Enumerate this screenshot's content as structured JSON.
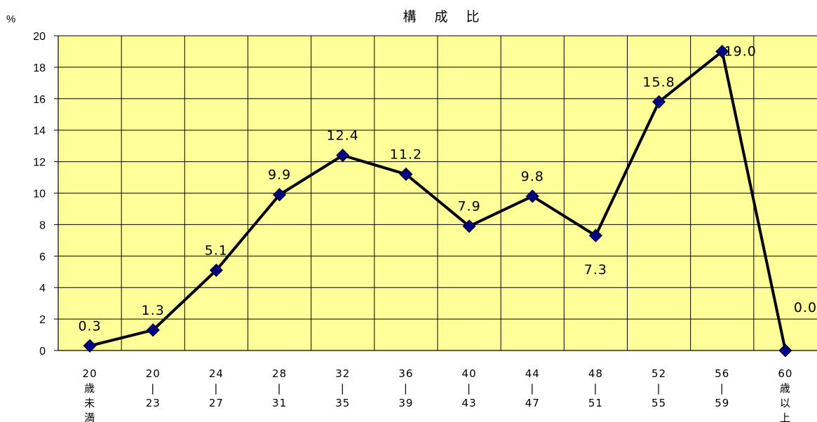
{
  "chart_data": {
    "type": "line",
    "title": "構 成 比",
    "ylabel": "%",
    "xlabel": "",
    "ylim": [
      0,
      20
    ],
    "yticks": [
      0,
      2,
      4,
      6,
      8,
      10,
      12,
      14,
      16,
      18,
      20
    ],
    "grid": true,
    "plot_background": "#FFFF99",
    "line_color": "#000000",
    "marker_color": "#000080",
    "categories": [
      [
        "20",
        "歳",
        "未",
        "満"
      ],
      [
        "20",
        "|",
        "23"
      ],
      [
        "24",
        "|",
        "27"
      ],
      [
        "28",
        "|",
        "31"
      ],
      [
        "32",
        "|",
        "35"
      ],
      [
        "36",
        "|",
        "39"
      ],
      [
        "40",
        "|",
        "43"
      ],
      [
        "44",
        "|",
        "47"
      ],
      [
        "48",
        "|",
        "51"
      ],
      [
        "52",
        "|",
        "55"
      ],
      [
        "56",
        "|",
        "59"
      ],
      [
        "60",
        "歳",
        "以",
        "上"
      ]
    ],
    "values": [
      0.3,
      1.3,
      5.1,
      9.9,
      12.4,
      11.2,
      7.9,
      9.8,
      7.3,
      15.8,
      19.0,
      0.0
    ],
    "data_labels": [
      "0.3",
      "1.3",
      "5.1",
      "9.9",
      "12.4",
      "11.2",
      "7.9",
      "9.8",
      "7.3",
      "15.8",
      "19.0",
      "0.0"
    ]
  }
}
